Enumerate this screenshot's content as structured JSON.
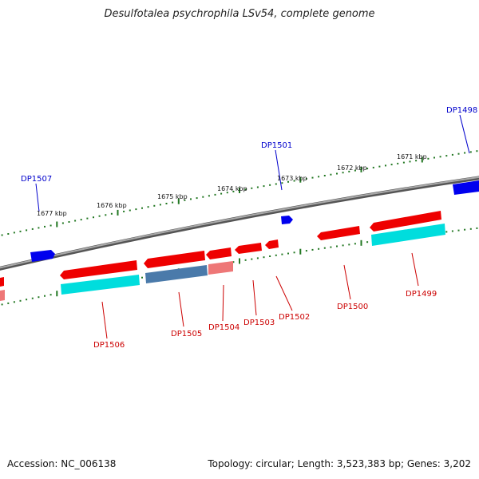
{
  "title": "Desulfotalea psychrophila LSv54, complete genome",
  "footer": {
    "accession": "Accession: NC_006138",
    "summary": "Topology: circular; Length: 3,523,383 bp; Genes: 3,202"
  },
  "colors": {
    "forward_gene": "#0000ee",
    "reverse_gene": "#ee0000",
    "reverse_gene_light": "#ee7777",
    "cyan_feature": "#00dddd",
    "steel_feature": "#4a7aaa",
    "tick": "#227722",
    "backbone": "#888888"
  },
  "scale_labels": [
    "1677 kbp",
    "1676 kbp",
    "1675 kbp",
    "1674 kbp",
    "1673 kbp",
    "1672 kbp",
    "1671 kbp"
  ],
  "forward_gene_labels": [
    "DP1507",
    "DP1501",
    "DP1498"
  ],
  "reverse_gene_labels": [
    "DP1506",
    "DP1505",
    "DP1504",
    "DP1503",
    "DP1502",
    "DP1500",
    "DP1499"
  ]
}
